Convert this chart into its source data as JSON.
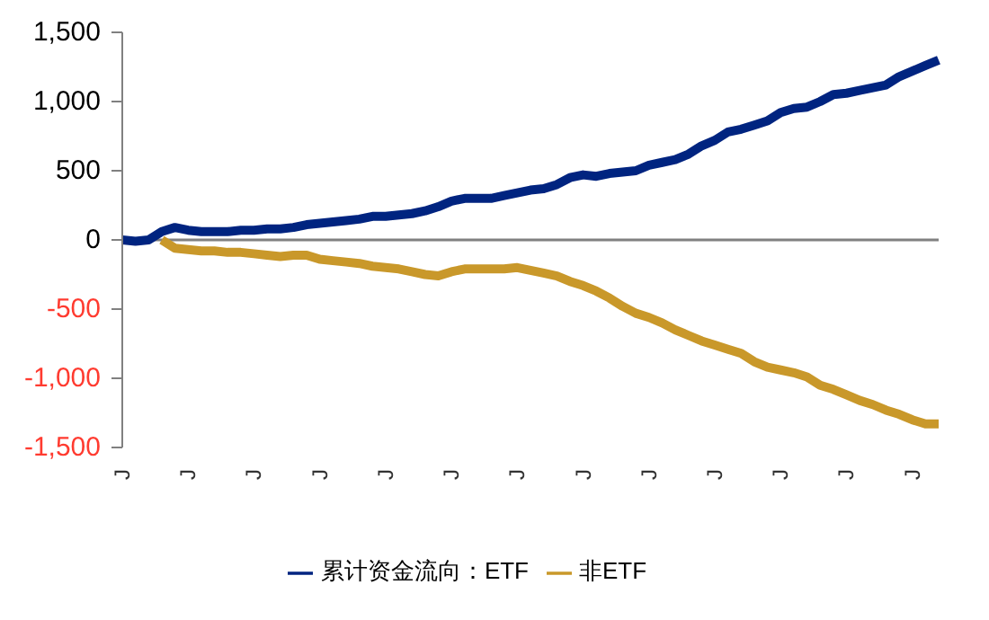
{
  "chart_data": {
    "type": "line",
    "categories": [
      "J",
      null,
      null,
      null,
      null,
      "J",
      null,
      null,
      null,
      null,
      "J",
      null,
      null,
      null,
      null,
      "J",
      null,
      null,
      null,
      null,
      "J",
      null,
      null,
      null,
      null,
      "J",
      null,
      null,
      null,
      null,
      "J",
      null,
      null,
      null,
      null,
      "J",
      null,
      null,
      null,
      null,
      "J",
      null,
      null,
      null,
      null,
      "J",
      null,
      null,
      null,
      null,
      "J",
      null,
      null,
      null,
      null,
      "J",
      null,
      null,
      null,
      null,
      "J",
      null,
      null
    ],
    "series": [
      {
        "name": "累计资金流向：ETF",
        "color": "#002480",
        "values": [
          0,
          -10,
          0,
          60,
          90,
          70,
          60,
          60,
          60,
          70,
          70,
          80,
          80,
          90,
          110,
          120,
          130,
          140,
          150,
          170,
          170,
          180,
          190,
          210,
          240,
          280,
          300,
          300,
          300,
          320,
          340,
          360,
          370,
          400,
          450,
          470,
          460,
          480,
          490,
          500,
          540,
          560,
          580,
          620,
          680,
          720,
          780,
          800,
          830,
          860,
          920,
          950,
          960,
          1000,
          1050,
          1060,
          1080,
          1100,
          1120,
          1180,
          1220,
          1260,
          1300
        ]
      },
      {
        "name": "非ETF",
        "color": "#c9982a",
        "values": [
          null,
          null,
          null,
          0,
          -60,
          -70,
          -80,
          -80,
          -90,
          -90,
          -100,
          -110,
          -120,
          -110,
          -110,
          -140,
          -150,
          -160,
          -170,
          -190,
          -200,
          -210,
          -230,
          -250,
          -260,
          -230,
          -210,
          -210,
          -210,
          -210,
          -200,
          -220,
          -240,
          -260,
          -300,
          -330,
          -370,
          -420,
          -480,
          -530,
          -560,
          -600,
          -650,
          -690,
          -730,
          -760,
          -790,
          -820,
          -880,
          -920,
          -940,
          -960,
          -990,
          -1050,
          -1080,
          -1120,
          -1160,
          -1190,
          -1230,
          -1260,
          -1300,
          -1330,
          -1330
        ]
      }
    ],
    "ylim": [
      -1500,
      1500
    ],
    "yticks": [
      {
        "value": -1500,
        "label": "-1,500"
      },
      {
        "value": -1000,
        "label": "-1,000"
      },
      {
        "value": -500,
        "label": "-500"
      },
      0,
      500,
      {
        "value": 1000,
        "label": "1,000"
      },
      {
        "value": 1500,
        "label": "1,500"
      }
    ],
    "ref_lines": [
      {
        "axis": "y",
        "value": 0,
        "color": "#808080"
      }
    ],
    "grid": false,
    "legend": "bottom",
    "marker": "none",
    "line_style": "solid"
  }
}
